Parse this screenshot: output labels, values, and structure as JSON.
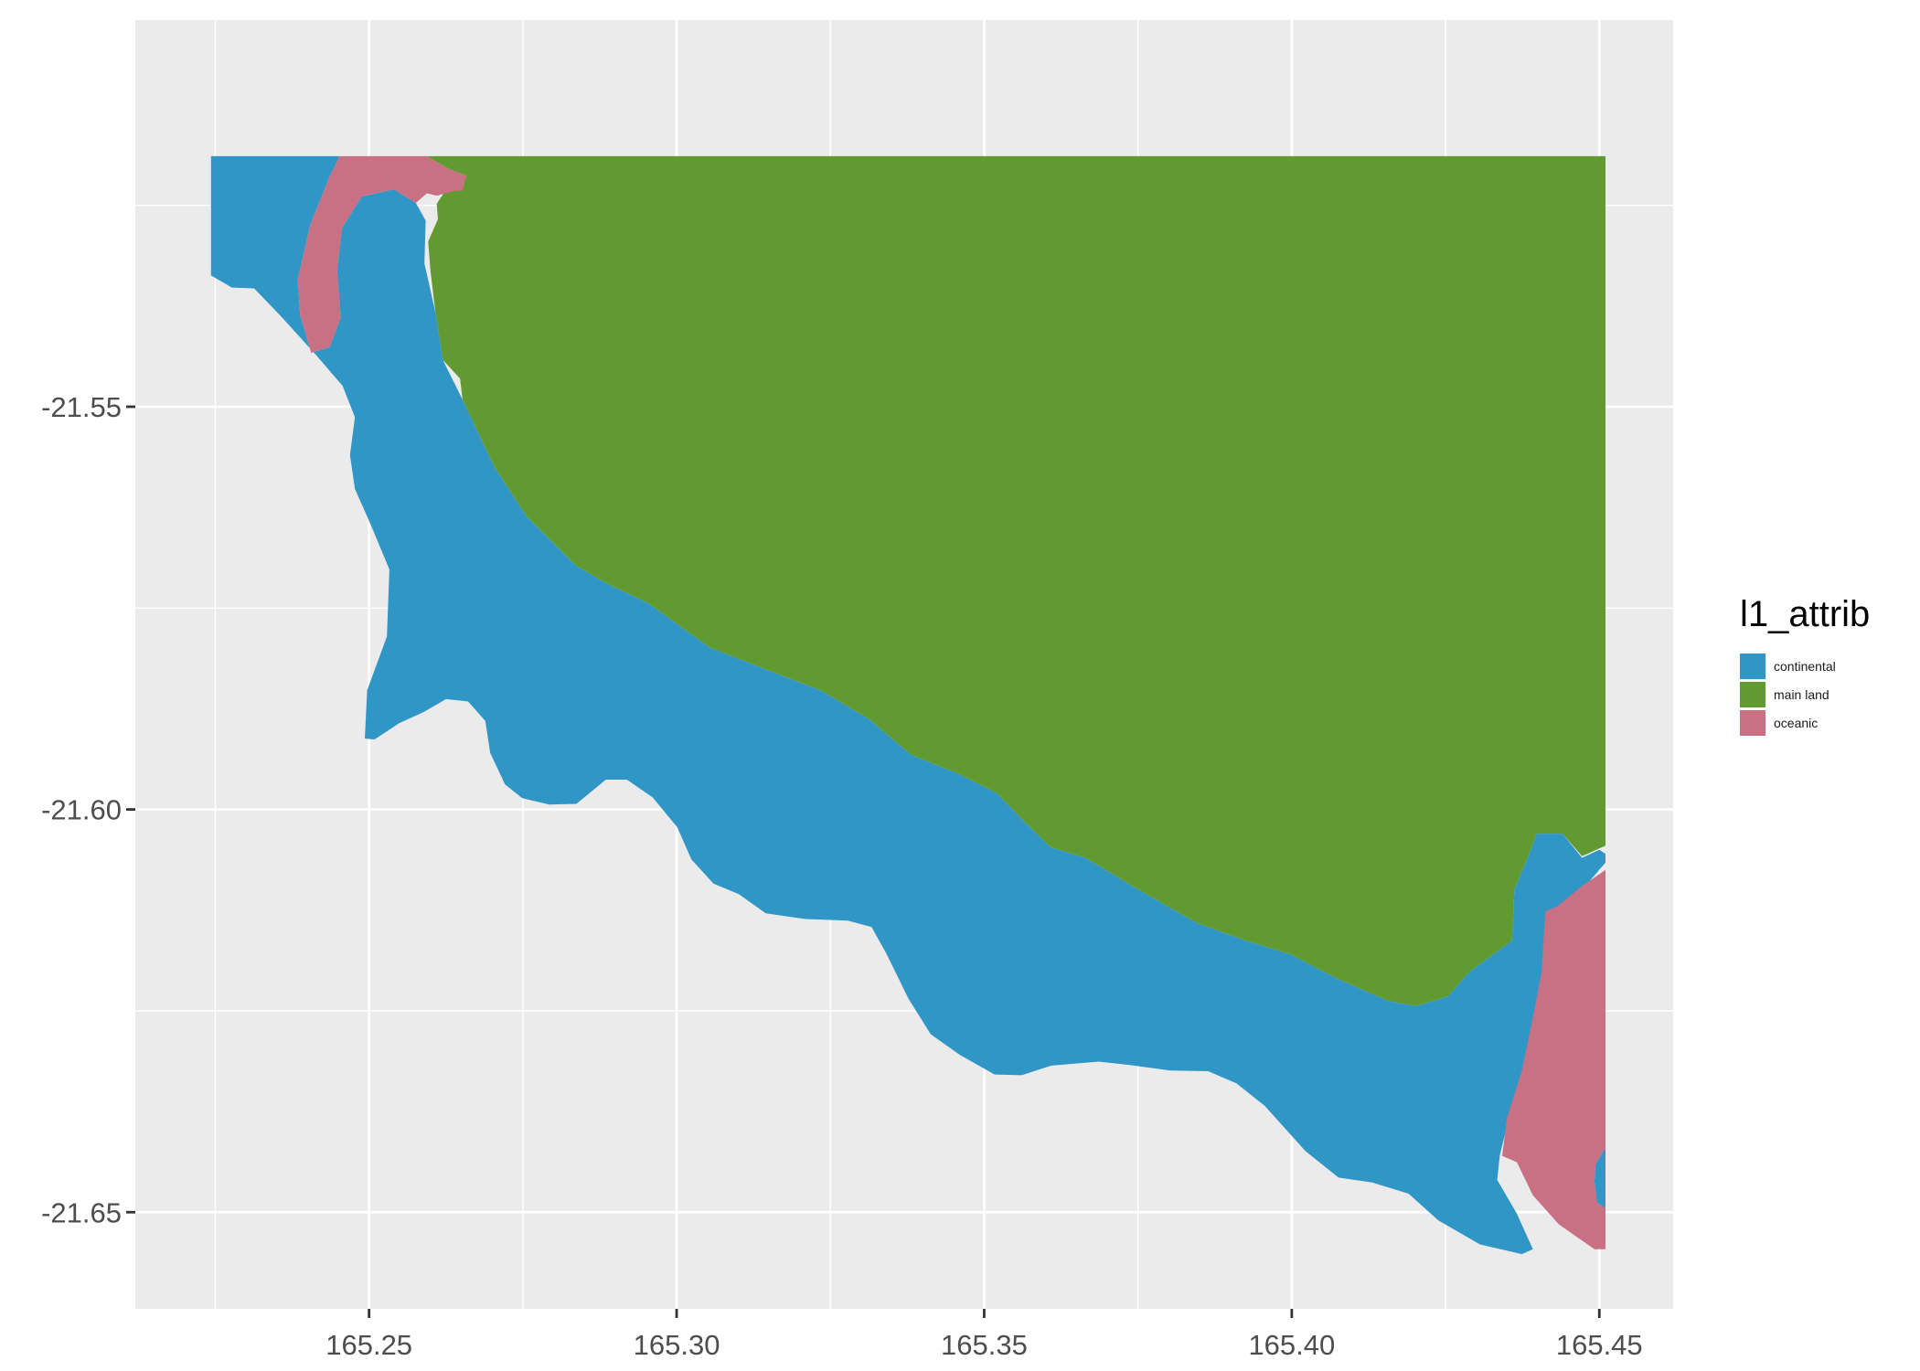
{
  "chart_data": {
    "type": "map",
    "title": "",
    "xlabel": "",
    "ylabel": "",
    "xlim": [
      165.212,
      165.462
    ],
    "ylim": [
      -21.662,
      -21.502
    ],
    "x_ticks": [
      {
        "value": 165.25,
        "label": "165.25"
      },
      {
        "value": 165.3,
        "label": "165.30"
      },
      {
        "value": 165.35,
        "label": "165.35"
      },
      {
        "value": 165.4,
        "label": "165.40"
      },
      {
        "value": 165.45,
        "label": "165.45"
      }
    ],
    "y_ticks": [
      {
        "value": -21.55,
        "label": "-21.55"
      },
      {
        "value": -21.6,
        "label": "-21.60"
      },
      {
        "value": -21.65,
        "label": "-21.65"
      }
    ],
    "grid": true,
    "legend": {
      "title": "l1_attrib",
      "position": "right",
      "entries": [
        {
          "key": "continental",
          "label": "continental",
          "color": "#3096c6"
        },
        {
          "key": "main_land",
          "label": "main land",
          "color": "#629a32"
        },
        {
          "key": "oceanic",
          "label": "oceanic",
          "color": "#c87084"
        }
      ]
    },
    "regions": [
      {
        "class": "continental",
        "points": [
          [
            165.2243,
            -21.5189
          ],
          [
            165.2452,
            -21.5189
          ],
          [
            165.2436,
            -21.5214
          ],
          [
            165.2404,
            -21.5275
          ],
          [
            165.2384,
            -21.5342
          ],
          [
            165.2388,
            -21.5386
          ],
          [
            165.2406,
            -21.5433
          ],
          [
            165.2436,
            -21.5426
          ],
          [
            165.2454,
            -21.5389
          ],
          [
            165.2448,
            -21.5331
          ],
          [
            165.2456,
            -21.5278
          ],
          [
            165.2488,
            -21.5239
          ],
          [
            165.254,
            -21.523
          ],
          [
            165.2576,
            -21.5247
          ],
          [
            165.2592,
            -21.5269
          ],
          [
            165.259,
            -21.5322
          ],
          [
            165.2608,
            -21.5383
          ],
          [
            165.262,
            -21.5442
          ],
          [
            165.2652,
            -21.5491
          ],
          [
            165.2671,
            -21.5522
          ],
          [
            165.2704,
            -21.5575
          ],
          [
            165.2756,
            -21.5636
          ],
          [
            165.2836,
            -21.5697
          ],
          [
            165.2885,
            -21.5719
          ],
          [
            165.2954,
            -21.5744
          ],
          [
            165.3054,
            -21.5799
          ],
          [
            165.3158,
            -21.583
          ],
          [
            165.3234,
            -21.5852
          ],
          [
            165.3313,
            -21.5888
          ],
          [
            165.3381,
            -21.5932
          ],
          [
            165.3456,
            -21.5955
          ],
          [
            165.3521,
            -21.598
          ],
          [
            165.3569,
            -21.6018
          ],
          [
            165.3608,
            -21.6047
          ],
          [
            165.3665,
            -21.606
          ],
          [
            165.3745,
            -21.6097
          ],
          [
            165.3846,
            -21.6141
          ],
          [
            165.3926,
            -21.6163
          ],
          [
            165.3998,
            -21.618
          ],
          [
            165.4074,
            -21.621
          ],
          [
            165.4158,
            -21.6238
          ],
          [
            165.4202,
            -21.6244
          ],
          [
            165.4254,
            -21.6232
          ],
          [
            165.4288,
            -21.6202
          ],
          [
            165.4358,
            -21.6163
          ],
          [
            165.4362,
            -21.6099
          ],
          [
            165.4386,
            -21.6055
          ],
          [
            165.4398,
            -21.603
          ],
          [
            165.444,
            -21.603
          ],
          [
            165.4472,
            -21.606
          ],
          [
            165.45,
            -21.605
          ],
          [
            165.451,
            -21.6055
          ],
          [
            165.451,
            -21.6066
          ],
          [
            165.4466,
            -21.6105
          ],
          [
            165.4432,
            -21.613
          ],
          [
            165.4412,
            -21.6127
          ],
          [
            165.4416,
            -21.6202
          ],
          [
            165.4398,
            -21.6258
          ],
          [
            165.438,
            -21.6324
          ],
          [
            165.4354,
            -21.638
          ],
          [
            165.4338,
            -21.643
          ],
          [
            165.4334,
            -21.646
          ],
          [
            165.4366,
            -21.6502
          ],
          [
            165.4392,
            -21.6546
          ],
          [
            165.4374,
            -21.6552
          ],
          [
            165.4306,
            -21.654
          ],
          [
            165.4238,
            -21.651
          ],
          [
            165.419,
            -21.6477
          ],
          [
            165.413,
            -21.6463
          ],
          [
            165.4076,
            -21.6457
          ],
          [
            165.4022,
            -21.6424
          ],
          [
            165.3956,
            -21.6368
          ],
          [
            165.391,
            -21.634
          ],
          [
            165.3864,
            -21.6325
          ],
          [
            165.3802,
            -21.6324
          ],
          [
            165.3734,
            -21.6317
          ],
          [
            165.3686,
            -21.6313
          ],
          [
            165.3609,
            -21.6318
          ],
          [
            165.3561,
            -21.633
          ],
          [
            165.3517,
            -21.6329
          ],
          [
            165.3461,
            -21.6305
          ],
          [
            165.3413,
            -21.6279
          ],
          [
            165.3377,
            -21.6235
          ],
          [
            165.3341,
            -21.6179
          ],
          [
            165.3317,
            -21.6146
          ],
          [
            165.3278,
            -21.6138
          ],
          [
            165.3209,
            -21.6136
          ],
          [
            165.3145,
            -21.6129
          ],
          [
            165.3101,
            -21.6105
          ],
          [
            165.306,
            -21.6092
          ],
          [
            165.3024,
            -21.6062
          ],
          [
            165.3001,
            -21.6022
          ],
          [
            165.2961,
            -21.5985
          ],
          [
            165.2919,
            -21.5963
          ],
          [
            165.2885,
            -21.5963
          ],
          [
            165.2837,
            -21.5993
          ],
          [
            165.2793,
            -21.5994
          ],
          [
            165.2749,
            -21.5986
          ],
          [
            165.2721,
            -21.5969
          ],
          [
            165.2697,
            -21.593
          ],
          [
            165.2689,
            -21.589
          ],
          [
            165.2661,
            -21.5866
          ],
          [
            165.2625,
            -21.5863
          ],
          [
            165.2589,
            -21.5879
          ],
          [
            165.2549,
            -21.5893
          ],
          [
            165.2509,
            -21.5913
          ],
          [
            165.2493,
            -21.5912
          ],
          [
            165.2497,
            -21.5852
          ],
          [
            165.2529,
            -21.5785
          ],
          [
            165.2533,
            -21.5702
          ],
          [
            165.2503,
            -21.5647
          ],
          [
            165.2477,
            -21.5602
          ],
          [
            165.2469,
            -21.556
          ],
          [
            165.2477,
            -21.5513
          ],
          [
            165.2457,
            -21.5474
          ],
          [
            165.2413,
            -21.5435
          ],
          [
            165.2357,
            -21.5388
          ],
          [
            165.2313,
            -21.5353
          ],
          [
            165.2277,
            -21.5352
          ],
          [
            165.2243,
            -21.5337
          ]
        ]
      },
      {
        "class": "continental",
        "points": [
          [
            165.451,
            -21.642
          ],
          [
            165.451,
            -21.6495
          ],
          [
            165.4496,
            -21.6488
          ],
          [
            165.4492,
            -21.6462
          ],
          [
            165.4494,
            -21.644
          ]
        ]
      },
      {
        "class": "main_land",
        "points": [
          [
            165.2594,
            -21.5189
          ],
          [
            165.451,
            -21.5189
          ],
          [
            165.451,
            -21.6045
          ],
          [
            165.4472,
            -21.6058
          ],
          [
            165.444,
            -21.603
          ],
          [
            165.4398,
            -21.603
          ],
          [
            165.4386,
            -21.6055
          ],
          [
            165.4362,
            -21.6099
          ],
          [
            165.4358,
            -21.6163
          ],
          [
            165.4288,
            -21.6202
          ],
          [
            165.4254,
            -21.6232
          ],
          [
            165.4202,
            -21.6244
          ],
          [
            165.4158,
            -21.6238
          ],
          [
            165.4074,
            -21.621
          ],
          [
            165.3998,
            -21.618
          ],
          [
            165.3926,
            -21.6163
          ],
          [
            165.3846,
            -21.6141
          ],
          [
            165.3745,
            -21.6097
          ],
          [
            165.3665,
            -21.606
          ],
          [
            165.3608,
            -21.6047
          ],
          [
            165.3569,
            -21.6018
          ],
          [
            165.3521,
            -21.598
          ],
          [
            165.3456,
            -21.5955
          ],
          [
            165.3381,
            -21.5932
          ],
          [
            165.3313,
            -21.5888
          ],
          [
            165.3234,
            -21.5852
          ],
          [
            165.3158,
            -21.583
          ],
          [
            165.3054,
            -21.5799
          ],
          [
            165.2954,
            -21.5744
          ],
          [
            165.2885,
            -21.5719
          ],
          [
            165.2836,
            -21.5697
          ],
          [
            165.2756,
            -21.5636
          ],
          [
            165.2704,
            -21.5575
          ],
          [
            165.2671,
            -21.5522
          ],
          [
            165.2652,
            -21.5491
          ],
          [
            165.2648,
            -21.5465
          ],
          [
            165.262,
            -21.5442
          ],
          [
            165.2608,
            -21.5383
          ],
          [
            165.26,
            -21.5332
          ],
          [
            165.2596,
            -21.5295
          ],
          [
            165.2612,
            -21.5267
          ],
          [
            165.261,
            -21.5248
          ],
          [
            165.2624,
            -21.5232
          ],
          [
            165.264,
            -21.5218
          ],
          [
            165.2652,
            -21.5222
          ],
          [
            165.2658,
            -21.5213
          ],
          [
            165.263,
            -21.5205
          ]
        ]
      },
      {
        "class": "oceanic",
        "points": [
          [
            165.2452,
            -21.5189
          ],
          [
            165.2594,
            -21.5189
          ],
          [
            165.263,
            -21.5205
          ],
          [
            165.2658,
            -21.5213
          ],
          [
            165.2652,
            -21.5232
          ],
          [
            165.264,
            -21.5232
          ],
          [
            165.261,
            -21.5238
          ],
          [
            165.2594,
            -21.5235
          ],
          [
            165.2576,
            -21.5247
          ],
          [
            165.254,
            -21.523
          ],
          [
            165.2488,
            -21.5239
          ],
          [
            165.2456,
            -21.5278
          ],
          [
            165.2448,
            -21.5331
          ],
          [
            165.2454,
            -21.5389
          ],
          [
            165.2436,
            -21.5426
          ],
          [
            165.2406,
            -21.5433
          ],
          [
            165.2388,
            -21.5386
          ],
          [
            165.2384,
            -21.5342
          ],
          [
            165.2404,
            -21.5275
          ],
          [
            165.2436,
            -21.5214
          ]
        ]
      },
      {
        "class": "oceanic",
        "points": [
          [
            165.451,
            -21.6075
          ],
          [
            165.451,
            -21.642
          ],
          [
            165.4494,
            -21.644
          ],
          [
            165.4492,
            -21.6462
          ],
          [
            165.4496,
            -21.6488
          ],
          [
            165.451,
            -21.6495
          ],
          [
            165.451,
            -21.6546
          ],
          [
            165.4492,
            -21.6546
          ],
          [
            165.4434,
            -21.6515
          ],
          [
            165.4392,
            -21.6479
          ],
          [
            165.4366,
            -21.6438
          ],
          [
            165.4342,
            -21.643
          ],
          [
            165.435,
            -21.6383
          ],
          [
            165.4374,
            -21.6324
          ],
          [
            165.4392,
            -21.6258
          ],
          [
            165.4406,
            -21.6202
          ],
          [
            165.4412,
            -21.6127
          ],
          [
            165.4432,
            -21.612
          ],
          [
            165.447,
            -21.6096
          ]
        ]
      }
    ]
  }
}
